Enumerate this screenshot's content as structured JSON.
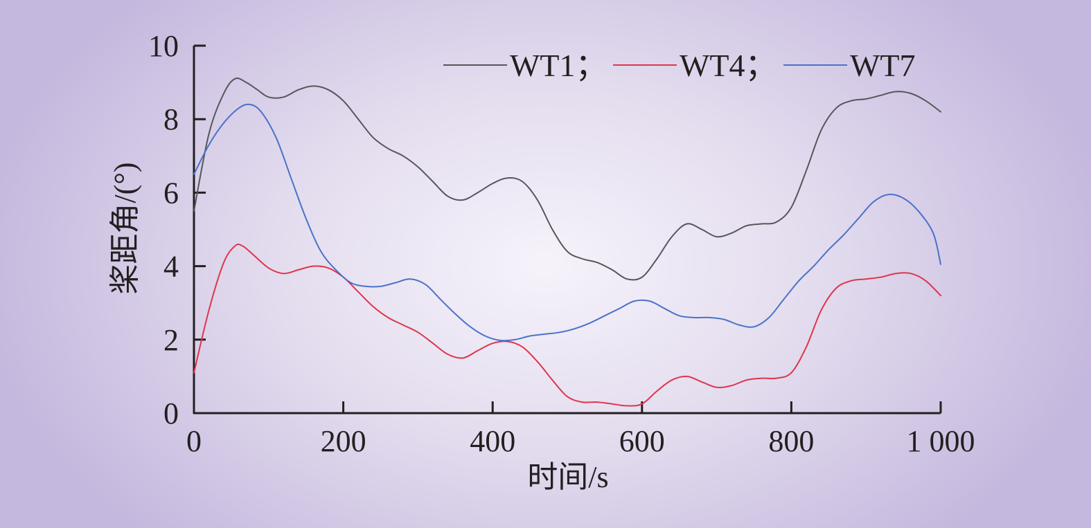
{
  "chart_data": {
    "type": "line",
    "title": "",
    "xlabel": "时间/s",
    "ylabel": "桨距角/(°)",
    "xlim": [
      0,
      1000
    ],
    "ylim": [
      0,
      10
    ],
    "x_ticks": [
      0,
      200,
      400,
      600,
      800,
      1000
    ],
    "x_tick_labels": [
      "0",
      "200",
      "400",
      "600",
      "800",
      "1 000"
    ],
    "y_ticks": [
      0,
      2,
      4,
      6,
      8,
      10
    ],
    "y_tick_labels": [
      "0",
      "2",
      "4",
      "6",
      "8",
      "10"
    ],
    "grid": false,
    "legend_position": "top-right",
    "series": [
      {
        "name": "WT1；",
        "color": "#55565a",
        "x": [
          0,
          20,
          40,
          55,
          70,
          85,
          100,
          120,
          140,
          160,
          180,
          200,
          220,
          240,
          260,
          280,
          300,
          320,
          340,
          360,
          380,
          400,
          420,
          440,
          460,
          480,
          500,
          520,
          540,
          560,
          580,
          600,
          620,
          640,
          660,
          680,
          700,
          720,
          740,
          760,
          780,
          800,
          820,
          840,
          860,
          880,
          900,
          920,
          940,
          960,
          980,
          1000
        ],
        "values": [
          5.5,
          7.6,
          8.7,
          9.1,
          9.0,
          8.8,
          8.6,
          8.6,
          8.8,
          8.9,
          8.8,
          8.5,
          8.0,
          7.5,
          7.2,
          7.0,
          6.7,
          6.3,
          5.9,
          5.8,
          6.0,
          6.25,
          6.4,
          6.3,
          5.8,
          5.0,
          4.4,
          4.2,
          4.1,
          3.9,
          3.65,
          3.7,
          4.2,
          4.8,
          5.15,
          5.0,
          4.8,
          4.9,
          5.1,
          5.15,
          5.2,
          5.6,
          6.6,
          7.7,
          8.3,
          8.5,
          8.55,
          8.65,
          8.75,
          8.7,
          8.5,
          8.2
        ]
      },
      {
        "name": "WT4；",
        "color": "#e0344a",
        "x": [
          0,
          20,
          40,
          55,
          65,
          80,
          100,
          120,
          140,
          160,
          180,
          200,
          220,
          240,
          260,
          280,
          300,
          320,
          340,
          360,
          380,
          400,
          420,
          440,
          460,
          480,
          500,
          520,
          540,
          560,
          580,
          600,
          620,
          640,
          660,
          680,
          700,
          720,
          740,
          760,
          780,
          800,
          820,
          840,
          860,
          880,
          900,
          920,
          940,
          960,
          980,
          1000
        ],
        "values": [
          1.1,
          2.8,
          4.1,
          4.55,
          4.55,
          4.3,
          3.95,
          3.8,
          3.9,
          4.0,
          3.95,
          3.7,
          3.3,
          2.9,
          2.6,
          2.4,
          2.2,
          1.9,
          1.6,
          1.5,
          1.7,
          1.9,
          1.95,
          1.8,
          1.4,
          0.9,
          0.45,
          0.3,
          0.3,
          0.25,
          0.2,
          0.25,
          0.6,
          0.9,
          1.0,
          0.85,
          0.7,
          0.75,
          0.9,
          0.95,
          0.95,
          1.1,
          1.8,
          2.8,
          3.4,
          3.6,
          3.65,
          3.7,
          3.8,
          3.8,
          3.6,
          3.2
        ]
      },
      {
        "name": "WT7",
        "color": "#4a72c8",
        "x": [
          0,
          20,
          40,
          60,
          75,
          90,
          110,
          130,
          150,
          170,
          190,
          210,
          230,
          250,
          270,
          290,
          310,
          330,
          350,
          370,
          390,
          410,
          430,
          450,
          470,
          490,
          510,
          530,
          550,
          570,
          590,
          610,
          630,
          650,
          670,
          690,
          710,
          730,
          750,
          770,
          790,
          810,
          830,
          850,
          870,
          890,
          910,
          930,
          950,
          970,
          990,
          1000
        ],
        "values": [
          6.5,
          7.3,
          7.9,
          8.3,
          8.4,
          8.2,
          7.5,
          6.4,
          5.3,
          4.4,
          3.9,
          3.55,
          3.45,
          3.45,
          3.55,
          3.65,
          3.5,
          3.1,
          2.7,
          2.35,
          2.1,
          1.98,
          2.0,
          2.1,
          2.15,
          2.2,
          2.3,
          2.45,
          2.65,
          2.85,
          3.05,
          3.05,
          2.85,
          2.65,
          2.6,
          2.6,
          2.55,
          2.4,
          2.35,
          2.6,
          3.1,
          3.6,
          4.0,
          4.45,
          4.85,
          5.3,
          5.75,
          5.95,
          5.85,
          5.5,
          4.9,
          4.05
        ]
      }
    ]
  }
}
